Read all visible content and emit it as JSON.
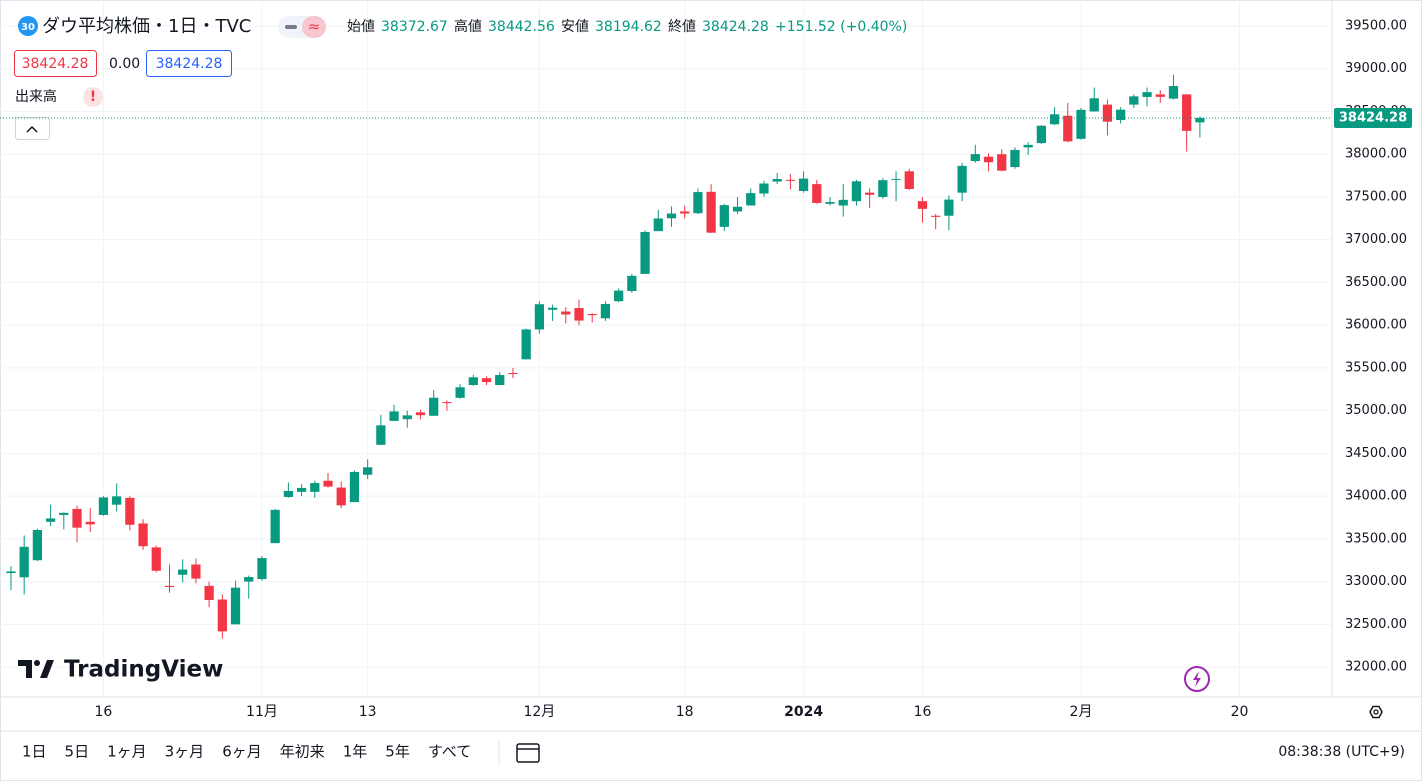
{
  "chart_data": {
    "type": "candlestick",
    "badge": "30",
    "title": "ダウ平均株価・1日・TVC",
    "ohlc_labels": [
      "始値",
      "高値",
      "安値",
      "終値"
    ],
    "change": "+151.52 (+0.40%)",
    "spread": "0.00",
    "indicator": "出来高",
    "logo": "TradingView",
    "up_color": "#089981",
    "down_color": "#f23645",
    "grid": true,
    "open": [
      33100,
      33050,
      33250,
      33700,
      33780,
      33850,
      33700,
      33780,
      33900,
      33980,
      33680,
      33400,
      32950,
      33080,
      33200,
      32950,
      32790,
      32500,
      33000,
      33030,
      33450,
      33990,
      34050,
      34050,
      34180,
      34100,
      33930,
      34250,
      34600,
      34880,
      34900,
      34980,
      34940,
      35100,
      35150,
      35300,
      35380,
      35300,
      35440,
      35600,
      35950,
      36180,
      36160,
      36200,
      36130,
      36080,
      36280,
      36400,
      36600,
      37100,
      37250,
      37330,
      37310,
      37560,
      37150,
      37330,
      37400,
      37540,
      37680,
      37700,
      37570,
      37650,
      37420,
      37400,
      37450,
      37550,
      37500,
      37700,
      37800,
      37450,
      37280,
      37280,
      37550,
      37920,
      37970,
      38000,
      37850,
      38080,
      38130,
      38350,
      38450,
      38180,
      38500,
      38580,
      38400,
      38580,
      38670,
      38700,
      38650,
      38700,
      38372.67
    ],
    "high": [
      33180,
      33540,
      33620,
      33900,
      33810,
      33890,
      33860,
      34000,
      34150,
      34000,
      33730,
      33420,
      33200,
      33260,
      33270,
      33000,
      32850,
      33010,
      33070,
      33300,
      33850,
      34160,
      34140,
      34180,
      34270,
      34170,
      34300,
      34430,
      34950,
      35070,
      35000,
      35010,
      35240,
      35120,
      35310,
      35420,
      35400,
      35450,
      35500,
      35960,
      36280,
      36240,
      36210,
      36300,
      36140,
      36280,
      36430,
      36600,
      37110,
      37350,
      37390,
      37400,
      37600,
      37650,
      37420,
      37500,
      37600,
      37690,
      37780,
      37770,
      37800,
      37700,
      37500,
      37650,
      37700,
      37600,
      37720,
      37800,
      37830,
      37500,
      37300,
      37520,
      37900,
      38110,
      38010,
      38060,
      38080,
      38140,
      38340,
      38550,
      38600,
      38540,
      38780,
      38640,
      38550,
      38700,
      38780,
      38750,
      38930,
      38700,
      38442.56
    ],
    "low": [
      32900,
      32850,
      33240,
      33650,
      33610,
      33460,
      33580,
      33770,
      33820,
      33600,
      33370,
      33110,
      32870,
      32990,
      32980,
      32700,
      32330,
      32500,
      32800,
      33010,
      33450,
      33980,
      34000,
      33980,
      34100,
      33860,
      33930,
      34200,
      34600,
      34880,
      34800,
      34900,
      34940,
      35000,
      35140,
      35290,
      35300,
      35300,
      35380,
      35600,
      35900,
      36050,
      36020,
      36000,
      36030,
      36050,
      36270,
      36380,
      36600,
      37100,
      37150,
      37250,
      37300,
      37080,
      37100,
      37300,
      37400,
      37500,
      37650,
      37590,
      37550,
      37420,
      37400,
      37270,
      37400,
      37370,
      37480,
      37450,
      37580,
      37200,
      37120,
      37110,
      37450,
      37900,
      37800,
      37800,
      37830,
      37990,
      38120,
      38340,
      38140,
      38170,
      38500,
      38220,
      38360,
      38540,
      38560,
      38600,
      38640,
      38030,
      38194.62
    ],
    "close": [
      33119,
      33407,
      33604,
      33739,
      33804,
      33631,
      33670,
      33985,
      33997,
      33665,
      33414,
      33127,
      32936,
      33141,
      33035,
      32785,
      32418,
      32929,
      33053,
      33275,
      33839,
      34061,
      34096,
      34153,
      34112,
      33892,
      34283,
      34337,
      34828,
      34991,
      34945,
      34947,
      35151,
      35088,
      35273,
      35390,
      35334,
      35417,
      35430,
      35950,
      36245,
      36204,
      36125,
      36054,
      36117,
      36248,
      36404,
      36577,
      37090,
      37248,
      37306,
      37306,
      37557,
      37082,
      37404,
      37385,
      37545,
      37657,
      37710,
      37690,
      37715,
      37430,
      37440,
      37466,
      37683,
      37525,
      37696,
      37711,
      37593,
      37361,
      37267,
      37469,
      37864,
      38001,
      37906,
      37807,
      38050,
      38109,
      38333,
      38467,
      38150,
      38519,
      38654,
      38380,
      38521,
      38677,
      38726,
      38671,
      38797,
      38273,
      38424.28
    ],
    "xlim": [
      -0.83,
      100
    ],
    "xticks": [
      {
        "value": 7,
        "label": "16"
      },
      {
        "value": 19,
        "label": "11月"
      },
      {
        "value": 27,
        "label": "13"
      },
      {
        "value": 40,
        "label": "12月"
      },
      {
        "value": 51,
        "label": "18"
      },
      {
        "value": 60,
        "label": "2024"
      },
      {
        "value": 69,
        "label": "16"
      },
      {
        "value": 81,
        "label": "2月"
      },
      {
        "value": 93,
        "label": "20"
      }
    ],
    "ylim": [
      31650,
      39804
    ],
    "yticks": [
      {
        "value": 32000,
        "label": "32000.00"
      },
      {
        "value": 32500,
        "label": "32500.00"
      },
      {
        "value": 33000,
        "label": "33000.00"
      },
      {
        "value": 33500,
        "label": "33500.00"
      },
      {
        "value": 34000,
        "label": "34000.00"
      },
      {
        "value": 34500,
        "label": "34500.00"
      },
      {
        "value": 35000,
        "label": "35000.00"
      },
      {
        "value": 35500,
        "label": "35500.00"
      },
      {
        "value": 36000,
        "label": "36000.00"
      },
      {
        "value": 36500,
        "label": "36500.00"
      },
      {
        "value": 37000,
        "label": "37000.00"
      },
      {
        "value": 37500,
        "label": "37500.00"
      },
      {
        "value": 38000,
        "label": "38000.00"
      },
      {
        "value": 38500,
        "label": "38500.00"
      },
      {
        "value": 39000,
        "label": "39000.00"
      },
      {
        "value": 39500,
        "label": "39500.00"
      }
    ],
    "ranges": [
      "1日",
      "5日",
      "1ヶ月",
      "3ヶ月",
      "6ヶ月",
      "年初来",
      "1年",
      "5年",
      "すべて"
    ],
    "clock": "08:38:38 (UTC+9)"
  }
}
